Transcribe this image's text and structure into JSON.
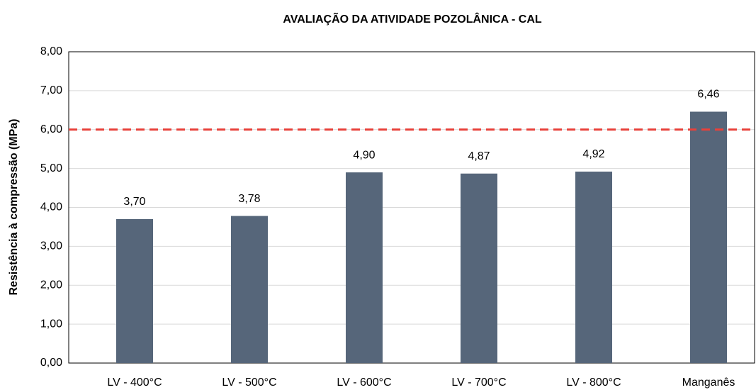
{
  "chart_data": {
    "type": "bar",
    "title": "AVALIAÇÃO DA ATIVIDADE POZOLÂNICA - CAL",
    "ylabel": "Resistência à compressão (MPa)",
    "categories": [
      "LV - 400°C",
      "LV - 500°C",
      "LV - 600°C",
      "LV - 700°C",
      "LV - 800°C",
      "Manganês"
    ],
    "values": [
      3.7,
      3.78,
      4.9,
      4.87,
      4.92,
      6.46
    ],
    "value_labels": [
      "3,70",
      "3,78",
      "4,90",
      "4,87",
      "4,92",
      "6,46"
    ],
    "color": "#56667a",
    "ylim": [
      0,
      8
    ],
    "yticks": [
      {
        "value": 0,
        "label": "0,00"
      },
      {
        "value": 1,
        "label": "1,00"
      },
      {
        "value": 2,
        "label": "2,00"
      },
      {
        "value": 3,
        "label": "3,00"
      },
      {
        "value": 4,
        "label": "4,00"
      },
      {
        "value": 5,
        "label": "5,00"
      },
      {
        "value": 6,
        "label": "6,00"
      },
      {
        "value": 7,
        "label": "7,00"
      },
      {
        "value": 8,
        "label": "8,00"
      }
    ],
    "grid": true,
    "reference_line": {
      "value": 6,
      "color": "#e8413a"
    }
  }
}
